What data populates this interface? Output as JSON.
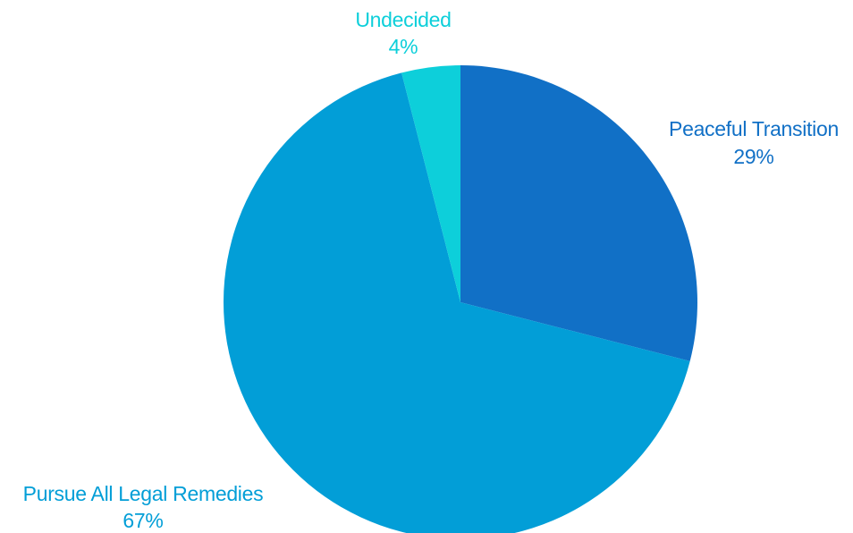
{
  "chart_data": {
    "type": "pie",
    "start_angle_deg": 0,
    "direction": "clockwise",
    "slices": [
      {
        "label": "Peaceful Transition",
        "value": 29,
        "value_label": "29%",
        "color": "#1170C6"
      },
      {
        "label": "Pursue All Legal Remedies",
        "value": 67,
        "value_label": "67%",
        "color": "#029ED7"
      },
      {
        "label": "Undecided",
        "value": 4,
        "value_label": "4%",
        "color": "#0DCFDA"
      }
    ]
  }
}
